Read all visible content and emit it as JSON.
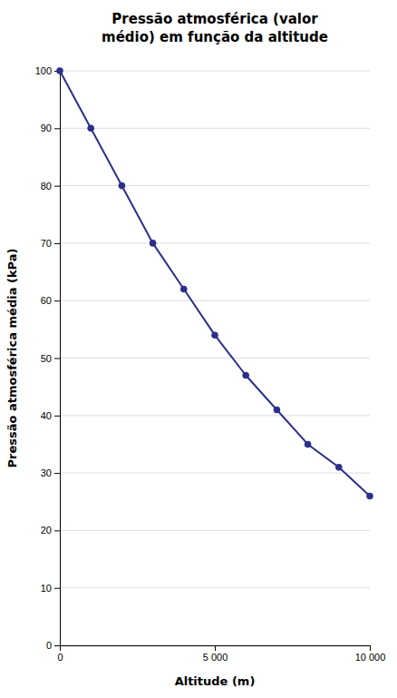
{
  "chart_data": {
    "type": "line",
    "title": "Pressão atmosférica (valor\nmédio) em função da altitude",
    "xlabel": "Altitude (m)",
    "ylabel": "Pressão atmosférica média (kPa)",
    "x": [
      0,
      1000,
      2000,
      3000,
      4000,
      5000,
      6000,
      7000,
      8000,
      9000,
      10000
    ],
    "values": [
      100,
      90,
      80,
      70,
      62,
      54,
      47,
      41,
      35,
      31,
      26
    ],
    "color": "#2b2f8a",
    "marker": "circle",
    "xlim": [
      0,
      10000
    ],
    "ylim": [
      0,
      100
    ],
    "xticks": [
      0,
      {
        "value": 5000,
        "label": "5 000"
      },
      {
        "value": 10000,
        "label": "10 000"
      }
    ],
    "yticks": [
      0,
      10,
      20,
      30,
      40,
      50,
      60,
      70,
      80,
      90,
      100
    ],
    "grid": "y"
  }
}
